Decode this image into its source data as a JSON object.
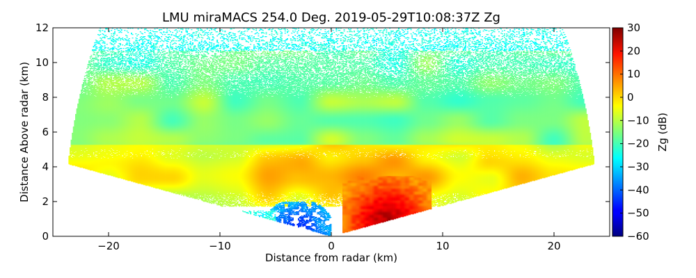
{
  "chart_data": {
    "type": "heatmap",
    "title": "LMU miraMACS 254.0 Deg. 2019-05-29T10:08:37Z  Zg",
    "xlabel": "Distance from radar (km)",
    "ylabel": "Distance Above radar  (km)",
    "xlim": [
      -25,
      25
    ],
    "ylim": [
      0,
      12
    ],
    "xticks": [
      -20,
      -10,
      0,
      10,
      20
    ],
    "yticks": [
      0,
      2,
      4,
      6,
      8,
      10,
      12
    ],
    "xtick_labels": [
      "−20",
      "−10",
      "0",
      "10",
      "20"
    ],
    "ytick_labels": [
      "0",
      "2",
      "4",
      "6",
      "8",
      "10",
      "12"
    ],
    "colorbar": {
      "label": "Zg (dB)",
      "range": [
        -60,
        30
      ],
      "ticks": [
        -60,
        -50,
        -40,
        -30,
        -20,
        -10,
        0,
        10,
        20,
        30
      ],
      "tick_labels": [
        "−60",
        "−50",
        "−40",
        "−30",
        "−20",
        "−10",
        "0",
        "10",
        "20",
        "30"
      ],
      "colormap": "jet"
    },
    "scan": {
      "azimuth_deg": 254.0,
      "max_range_km": 24,
      "sector_edges_deg": [
        10,
        170
      ]
    },
    "layers": [
      {
        "name": "upper-sparse-echo",
        "height_km": [
          6.5,
          11.5
        ],
        "zg_db": -25
      },
      {
        "name": "mid-cloud-layer",
        "height_km": [
          4.5,
          8.5
        ],
        "zg_db": -18
      },
      {
        "name": "bright-band-layer",
        "height_km": [
          2.5,
          4.5
        ],
        "zg_db": -5
      },
      {
        "name": "strong-core",
        "x_km": [
          2,
          8
        ],
        "height_km": [
          0,
          3
        ],
        "zg_db": 25
      },
      {
        "name": "weak-low-echo",
        "x_km": [
          -6,
          0
        ],
        "height_km": [
          0,
          2
        ],
        "zg_db": -45
      }
    ]
  }
}
